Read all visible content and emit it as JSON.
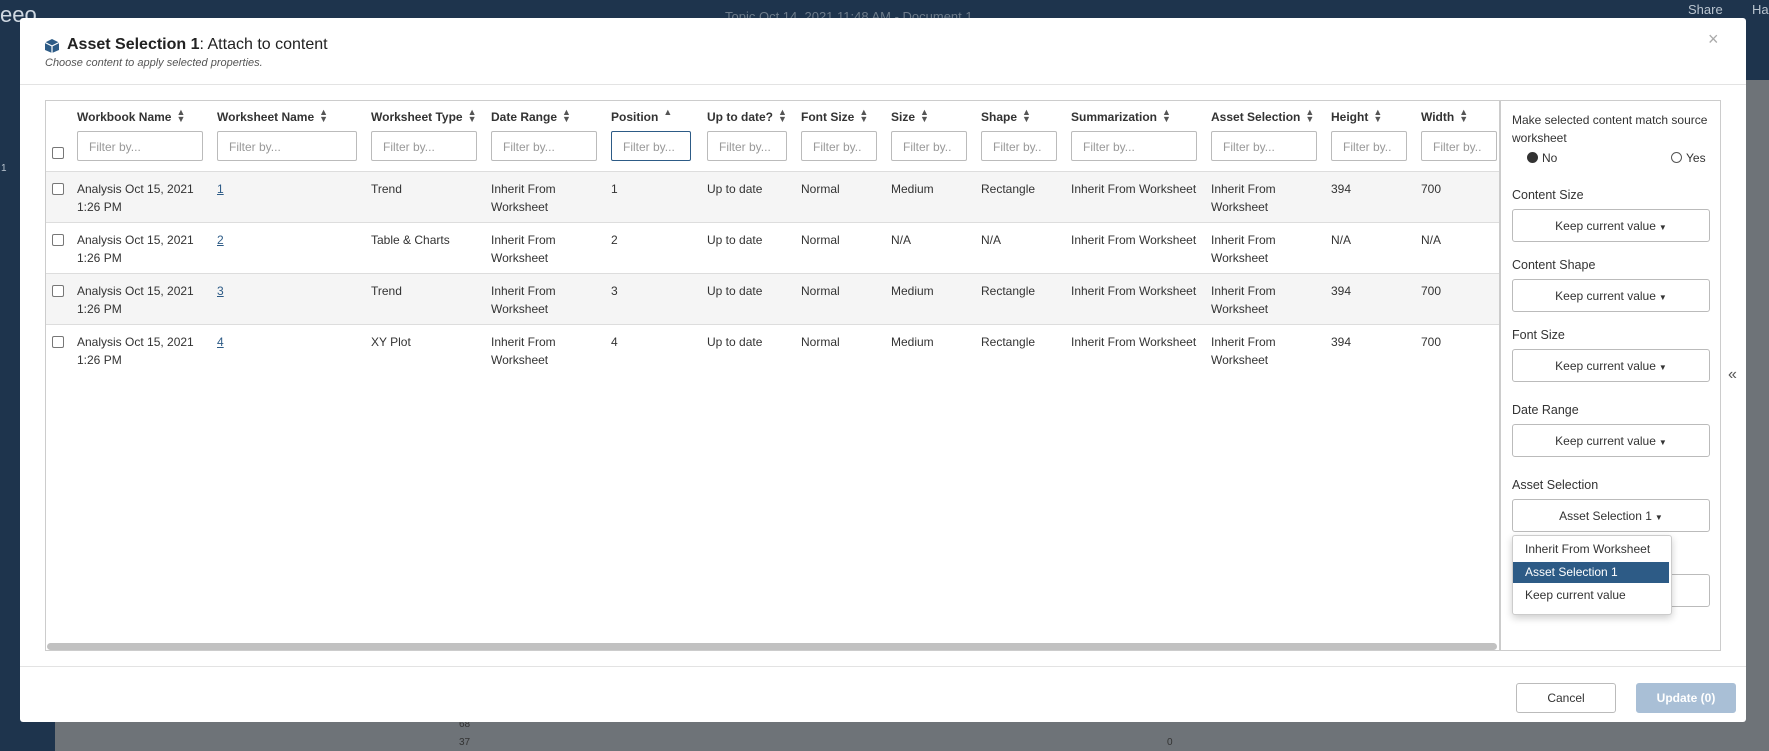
{
  "background": {
    "logo": "eeo",
    "topic": "Topic Oct 14, 2021 11:48 AM - Document 1",
    "share": "Share",
    "user": "Ha",
    "side_number": "1",
    "axis_labels": [
      "68",
      "37",
      "0"
    ]
  },
  "modal": {
    "title_bold": "Asset Selection 1",
    "title_rest": ": Attach to content",
    "subtitle": "Choose content to apply selected properties.",
    "close": "×"
  },
  "table": {
    "columns": [
      "Workbook Name",
      "Worksheet Name",
      "Worksheet Type",
      "Date Range",
      "Position",
      "Up to date?",
      "Font Size",
      "Size",
      "Shape",
      "Summarization",
      "Asset Selection",
      "Height",
      "Width"
    ],
    "filters": [
      "Filter by...",
      "Filter by...",
      "Filter by...",
      "Filter by...",
      "Filter by...",
      "Filter by...",
      "Filter by..",
      "Filter by..",
      "Filter by..",
      "Filter by...",
      "Filter by...",
      "Filter by..",
      "Filter by.."
    ],
    "rows": [
      [
        "Analysis Oct 15, 2021 1:26 PM",
        "1",
        "Trend",
        "Inherit From Worksheet",
        "1",
        "Up to date",
        "Normal",
        "Medium",
        "Rectangle",
        "Inherit From Worksheet",
        "Inherit From Worksheet",
        "394",
        "700"
      ],
      [
        "Analysis Oct 15, 2021 1:26 PM",
        "2",
        "Table & Charts",
        "Inherit From Worksheet",
        "2",
        "Up to date",
        "Normal",
        "N/A",
        "N/A",
        "Inherit From Worksheet",
        "Inherit From Worksheet",
        "N/A",
        "N/A"
      ],
      [
        "Analysis Oct 15, 2021 1:26 PM",
        "3",
        "Trend",
        "Inherit From Worksheet",
        "3",
        "Up to date",
        "Normal",
        "Medium",
        "Rectangle",
        "Inherit From Worksheet",
        "Inherit From Worksheet",
        "394",
        "700"
      ],
      [
        "Analysis Oct 15, 2021 1:26 PM",
        "4",
        "XY Plot",
        "Inherit From Worksheet",
        "4",
        "Up to date",
        "Normal",
        "Medium",
        "Rectangle",
        "Inherit From Worksheet",
        "Inherit From Worksheet",
        "394",
        "700"
      ]
    ]
  },
  "sidebar": {
    "match_label": "Make selected content match source worksheet",
    "match_options": [
      "No",
      "Yes"
    ],
    "sections": [
      {
        "label": "Content Size",
        "button": "Keep current value"
      },
      {
        "label": "Content Shape",
        "button": "Keep current value"
      },
      {
        "label": "Font Size",
        "button": "Keep current value"
      },
      {
        "label": "Date Range",
        "button": "Keep current value"
      },
      {
        "label": "Asset Selection",
        "button": "Asset Selection 1"
      }
    ],
    "dropdown": [
      "Inherit From Worksheet",
      "Asset Selection 1",
      "Keep current value"
    ],
    "collapse": "«"
  },
  "footer": {
    "cancel": "Cancel",
    "update": "Update (0)"
  }
}
